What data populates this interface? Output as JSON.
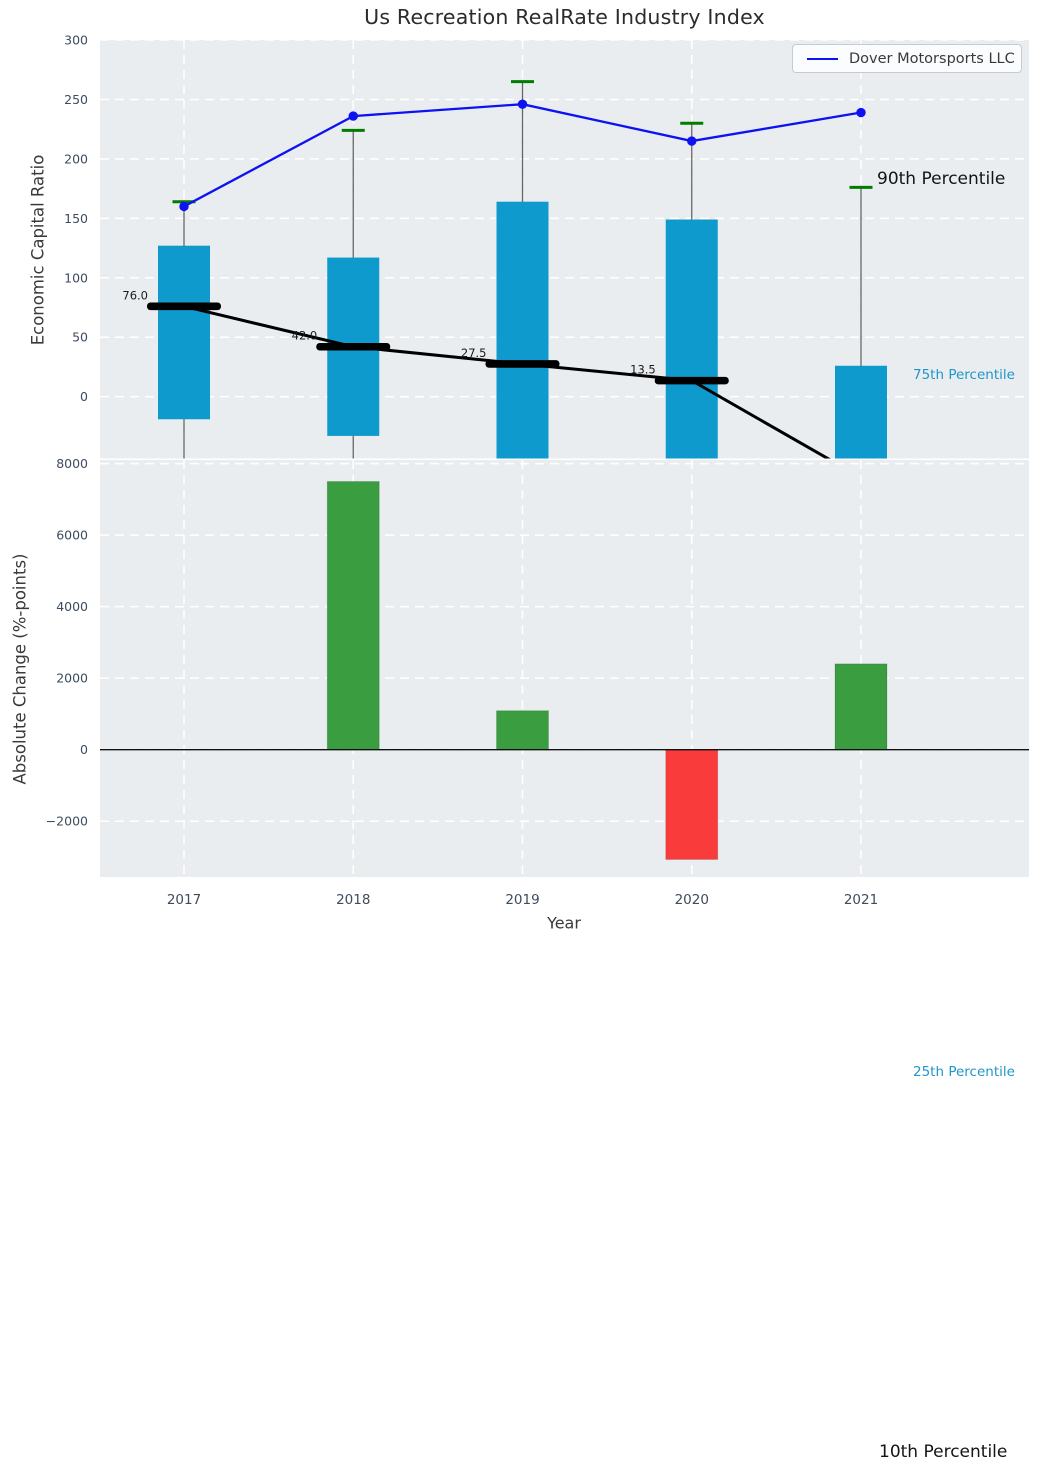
{
  "title": "Us Recreation RealRate Industry Index",
  "colors": {
    "plot_background": "#e9edf0",
    "gridline": "#ffffff",
    "tick_label": "#3d4c5e",
    "company_line": "#0d12f2",
    "percentile_box": "#0f9ace",
    "p90_cap": "#007d00",
    "whisker": "#666666",
    "median": "#000000",
    "positive_bar": "#3a9d3f",
    "negative_bar": "#f93b3b",
    "percentile_label": "#2196c8"
  },
  "legend": {
    "label": "Dover Motorsports LLC"
  },
  "annotations": {
    "p90": "90th Percentile",
    "p75": "75th Percentile",
    "p25": "25th Percentile",
    "p10": "10th Percentile"
  },
  "chart_data": [
    {
      "type": "line",
      "title": "Us Recreation RealRate Industry Index",
      "ylabel": "Economic Capital Ratio",
      "ylim": [
        -52,
        300
      ],
      "yticks": [
        0,
        50,
        100,
        150,
        200,
        250,
        300
      ],
      "grid": true,
      "legend_position": "upper right",
      "categories": [
        "2017",
        "2018",
        "2019",
        "2020",
        "2021"
      ],
      "series": [
        {
          "name": "Dover Motorsports LLC",
          "kind": "line-with-dots",
          "values": [
            160,
            236,
            246,
            215,
            239
          ]
        },
        {
          "name": "90th Percentile",
          "kind": "cap-markers",
          "values": [
            164,
            224,
            265,
            230,
            176
          ]
        },
        {
          "name": "75th Percentile",
          "kind": "box-top",
          "values": [
            127,
            117,
            164,
            149,
            26
          ]
        },
        {
          "name": "25th Percentile",
          "kind": "box-bottom",
          "values": [
            -19,
            -33,
            null,
            null,
            null
          ],
          "note": "null = box extends below visible axis"
        },
        {
          "name": "Median",
          "kind": "thick-line-markers",
          "values": [
            76.0,
            42.0,
            27.5,
            13.5,
            null
          ],
          "labels": [
            "76.0",
            "42.0",
            "27.5",
            "13.5"
          ],
          "projected_next": -68,
          "note": "line exits plot bottom between 2020 and 2021"
        }
      ]
    },
    {
      "type": "bar",
      "ylabel": "Absolute Change (%-points)",
      "xlabel": "Year",
      "ylim": [
        -3560,
        8100
      ],
      "yticks": [
        -2000,
        0,
        2000,
        4000,
        6000,
        8000
      ],
      "grid": true,
      "zero_line": true,
      "categories": [
        "2017",
        "2018",
        "2019",
        "2020",
        "2021"
      ],
      "values": [
        null,
        7500,
        1090,
        -3070,
        2400
      ]
    }
  ]
}
